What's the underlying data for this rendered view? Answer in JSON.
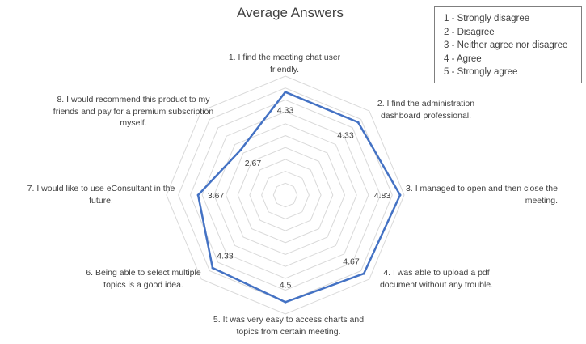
{
  "chart_data": {
    "type": "radar",
    "title": "Average Answers",
    "categories": [
      "1. I find the meeting chat user friendly.",
      "2. I find the administration dashboard professional.",
      "3. I managed to open and then close the meeting.",
      "4. I was able to upload a pdf document without any trouble.",
      "5. It was very easy to access charts and topics from certain meeting.",
      "6. Being able to select multiple topics is a good idea.",
      "7. I would like to use eConsultant in the future.",
      "8. I would recommend this product to my friends and pay for a premium subscription myself."
    ],
    "series": [
      {
        "values": [
          4.33,
          4.33,
          4.83,
          4.67,
          4.5,
          4.33,
          3.67,
          2.67
        ],
        "color": "#4472c4"
      }
    ],
    "data_labels": [
      "4.33",
      "4.33",
      "4.83",
      "4.67",
      "4.5",
      "4.33",
      "3.67",
      "2.67"
    ],
    "rlim": [
      0,
      5
    ],
    "grid": true,
    "legend_position": "top-right",
    "legend": [
      "1 - Strongly disagree",
      "2 - Disagree",
      "3 - Neither agree nor disagree",
      "4 - Agree",
      "5 - Strongly agree"
    ]
  }
}
